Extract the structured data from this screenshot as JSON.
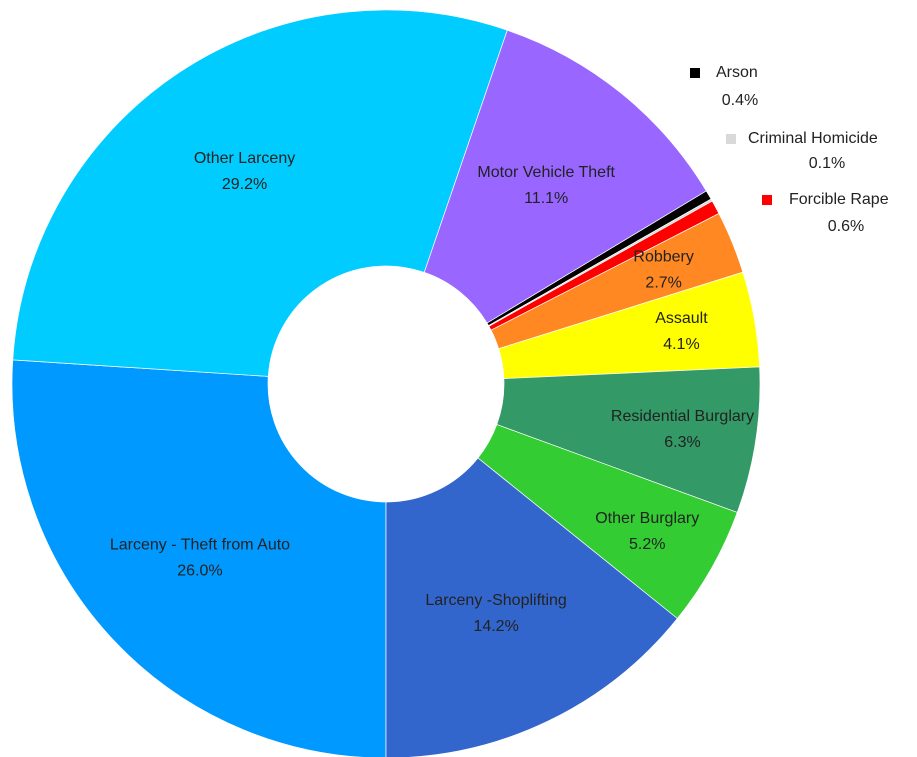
{
  "chart_data": {
    "type": "pie",
    "categories": [
      "Larceny - Theft from Auto",
      "Other Larceny",
      "Motor Vehicle Theft",
      "Arson",
      "Criminal Homicide",
      "Forcible Rape",
      "Robbery",
      "Assault",
      "Residential Burglary",
      "Other Burglary",
      "Larceny -Shoplifting"
    ],
    "values": [
      26.0,
      29.2,
      11.1,
      0.4,
      0.1,
      0.6,
      2.7,
      4.1,
      6.3,
      5.2,
      14.2
    ],
    "value_labels": [
      "26.0%",
      "29.2%",
      "11.1%",
      "0.4%",
      "0.1%",
      "0.6%",
      "2.7%",
      "4.1%",
      "6.3%",
      "5.2%",
      "14.2%"
    ],
    "colors": [
      "#0099ff",
      "#00ccff",
      "#9966ff",
      "#000000",
      "#d9d9d9",
      "#ff0000",
      "#ff8822",
      "#ffff00",
      "#339966",
      "#33cc33",
      "#3366cc"
    ]
  }
}
